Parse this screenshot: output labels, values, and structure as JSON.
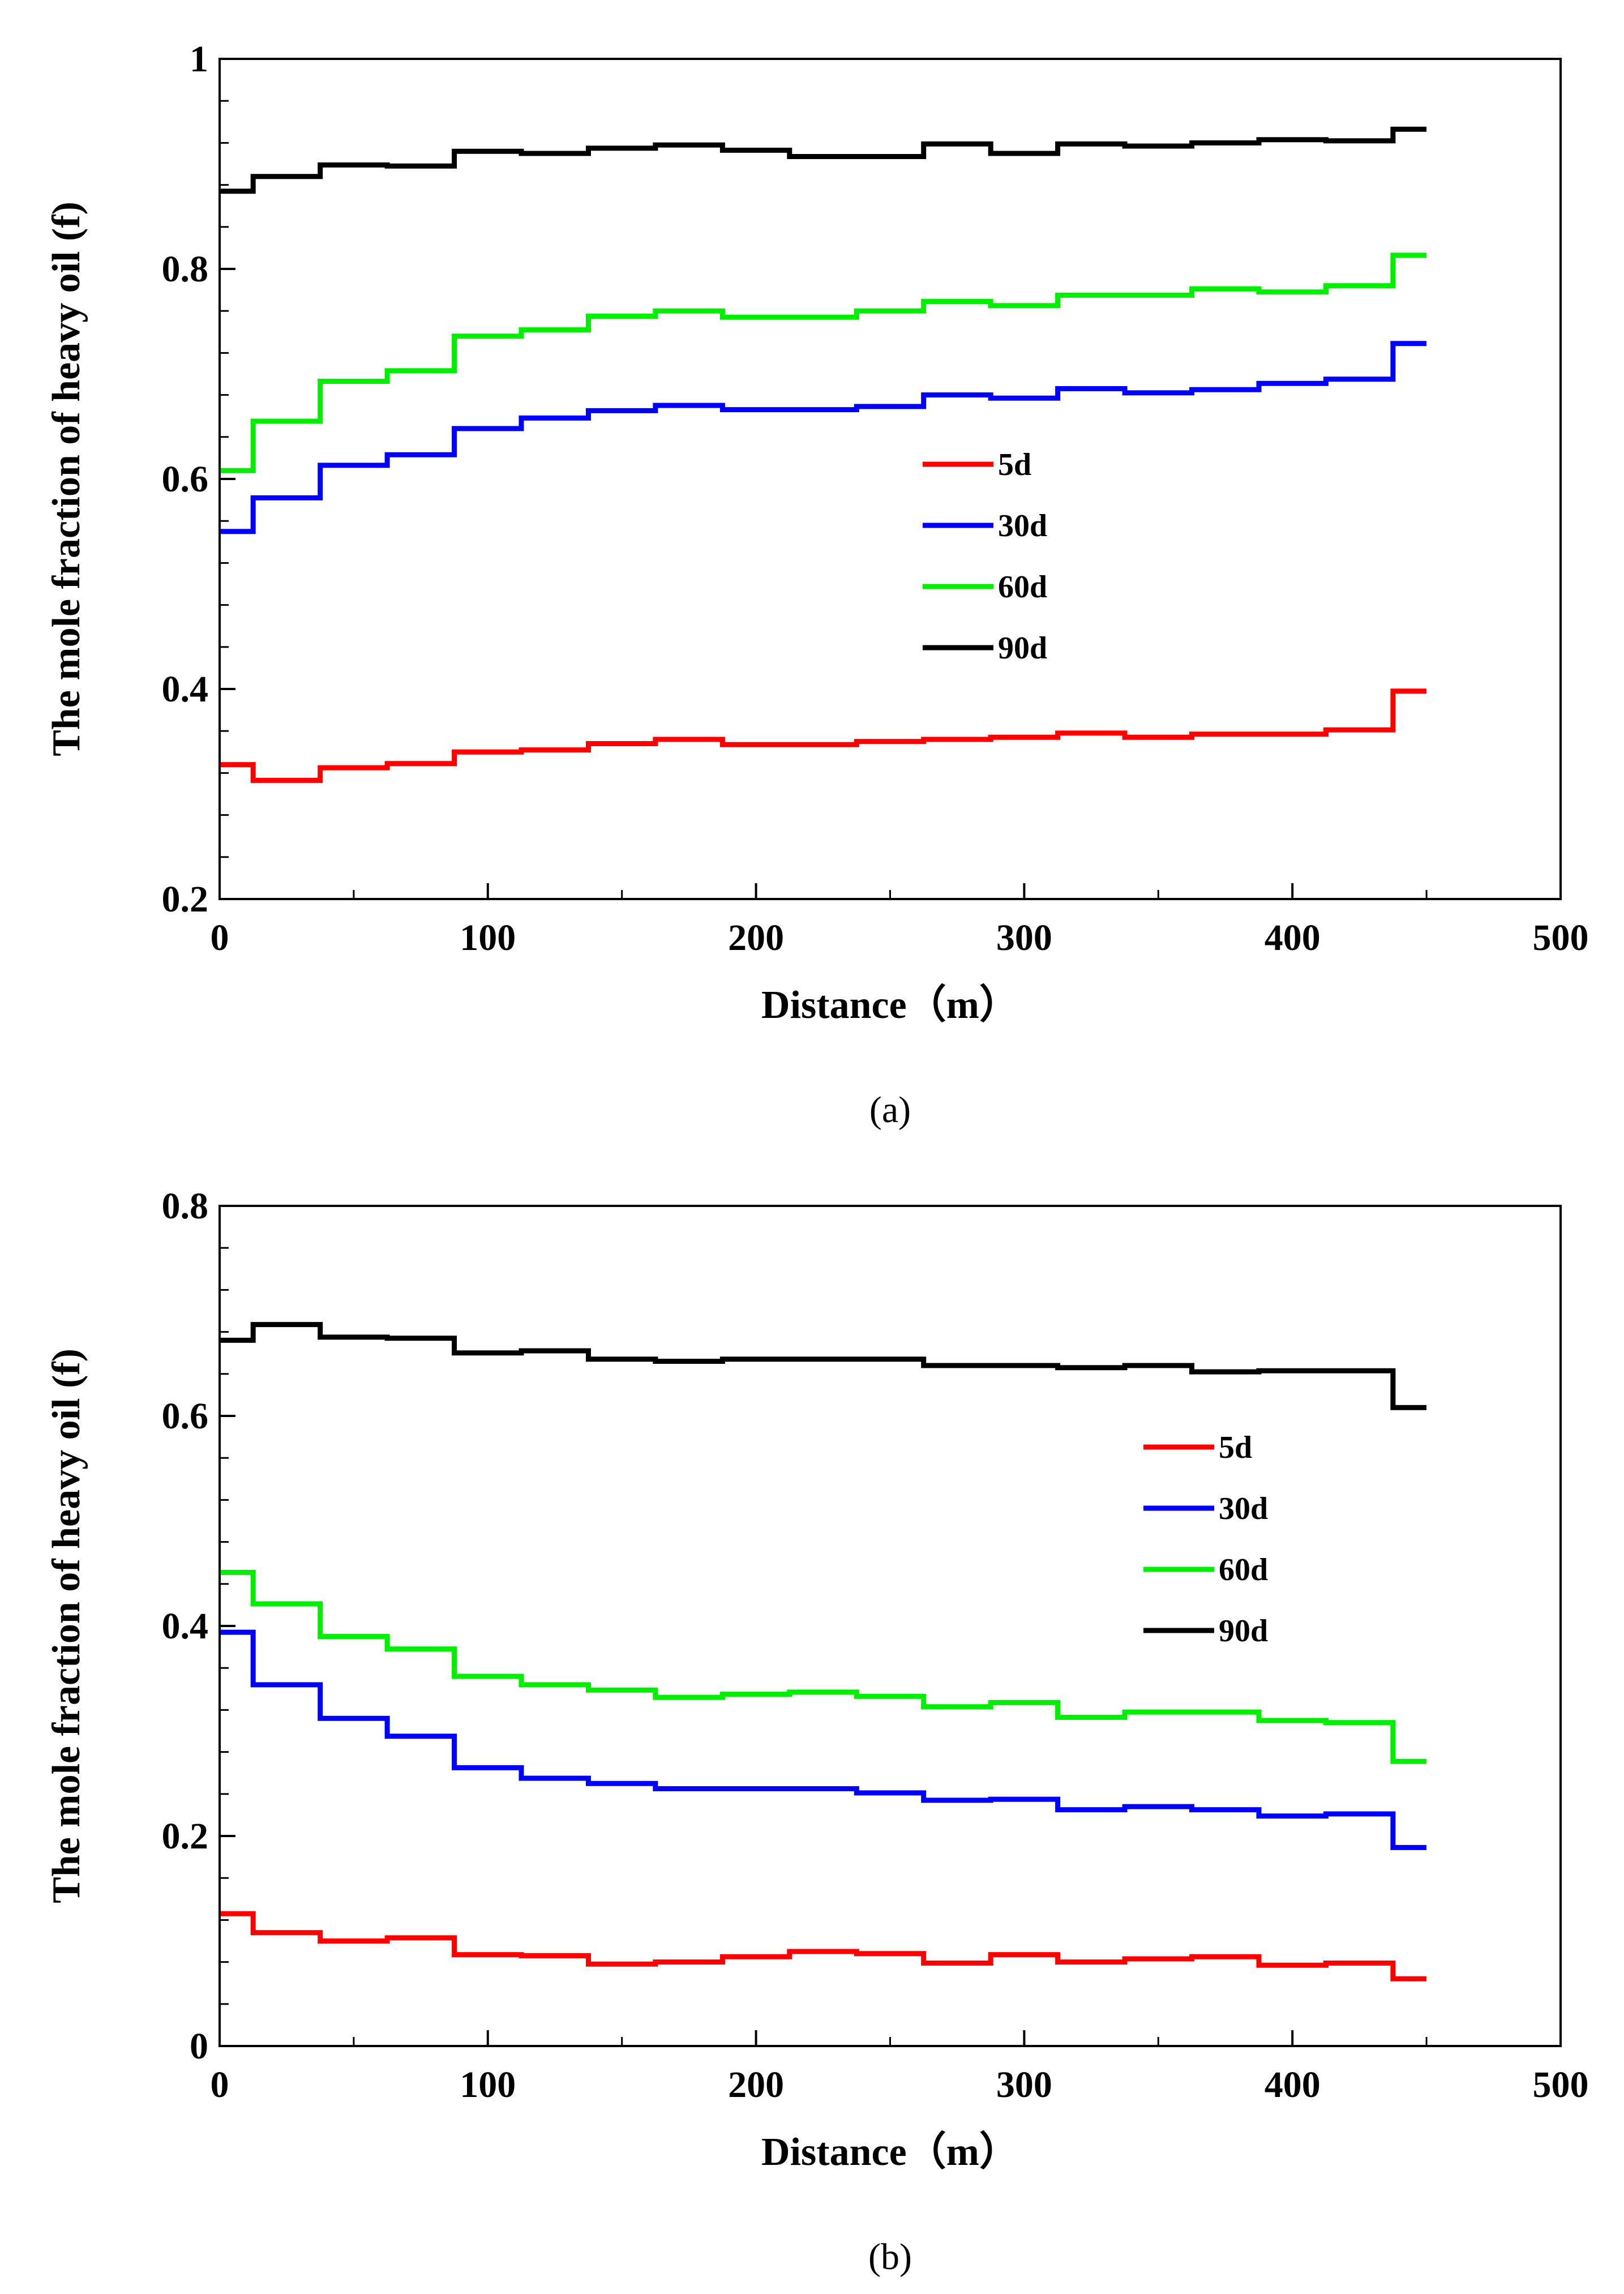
{
  "chart_data": [
    {
      "type": "line",
      "panel": "(a)",
      "xlabel": "Distance（m）",
      "ylabel": "The mole fraction of heavy oil (f)",
      "xlim": [
        0,
        500
      ],
      "ylim": [
        0.2,
        1.0
      ],
      "xticks": [
        0,
        100,
        200,
        300,
        400,
        500
      ],
      "xtick_labels": [
        "0",
        "100",
        "200",
        "300",
        "400",
        "500"
      ],
      "yticks": [
        0.2,
        0.4,
        0.6,
        0.8,
        1.0
      ],
      "ytick_labels": [
        "0.2",
        "0.4",
        "0.6",
        "0.8",
        "1"
      ],
      "legend_position": "center-right",
      "x": [
        0,
        12.5,
        37.5,
        62.5,
        87.5,
        112.5,
        137.5,
        162.5,
        187.5,
        212.5,
        237.5,
        262.5,
        287.5,
        312.5,
        337.5,
        362.5,
        387.5,
        412.5,
        437.5,
        450
      ],
      "series": [
        {
          "name": "5d",
          "color": "#ff0000",
          "values": [
            0.328,
            0.313,
            0.325,
            0.329,
            0.34,
            0.342,
            0.348,
            0.352,
            0.347,
            0.347,
            0.35,
            0.352,
            0.354,
            0.358,
            0.354,
            0.357,
            0.357,
            0.361,
            0.398,
            0.398
          ]
        },
        {
          "name": "30d",
          "color": "#0000ff",
          "values": [
            0.55,
            0.582,
            0.613,
            0.623,
            0.648,
            0.658,
            0.665,
            0.67,
            0.666,
            0.666,
            0.669,
            0.68,
            0.677,
            0.686,
            0.682,
            0.685,
            0.691,
            0.695,
            0.729,
            0.729
          ]
        },
        {
          "name": "60d",
          "color": "#00ee00",
          "values": [
            0.608,
            0.655,
            0.693,
            0.703,
            0.736,
            0.742,
            0.755,
            0.76,
            0.754,
            0.754,
            0.76,
            0.769,
            0.765,
            0.775,
            0.775,
            0.781,
            0.778,
            0.784,
            0.813,
            0.813
          ]
        },
        {
          "name": "90d",
          "color": "#000000",
          "values": [
            0.874,
            0.888,
            0.899,
            0.898,
            0.912,
            0.91,
            0.915,
            0.918,
            0.913,
            0.907,
            0.907,
            0.919,
            0.91,
            0.919,
            0.917,
            0.92,
            0.923,
            0.922,
            0.933,
            0.933
          ]
        }
      ]
    },
    {
      "type": "line",
      "panel": "(b)",
      "xlabel": "Distance（m）",
      "ylabel": "The mole fraction of heavy oil (f)",
      "xlim": [
        0,
        500
      ],
      "ylim": [
        0,
        0.8
      ],
      "xticks": [
        0,
        100,
        200,
        300,
        400,
        500
      ],
      "xtick_labels": [
        "0",
        "100",
        "200",
        "300",
        "400",
        "500"
      ],
      "yticks": [
        0,
        0.2,
        0.4,
        0.6,
        0.8
      ],
      "ytick_labels": [
        "0",
        "0.2",
        "0.4",
        "0.6",
        "0.8"
      ],
      "legend_position": "center-right",
      "x": [
        0,
        12.5,
        37.5,
        62.5,
        87.5,
        112.5,
        137.5,
        162.5,
        187.5,
        212.5,
        237.5,
        262.5,
        287.5,
        312.5,
        337.5,
        362.5,
        387.5,
        412.5,
        437.5,
        450
      ],
      "series": [
        {
          "name": "5d",
          "color": "#ff0000",
          "values": [
            0.126,
            0.108,
            0.1,
            0.103,
            0.087,
            0.086,
            0.078,
            0.08,
            0.085,
            0.09,
            0.088,
            0.079,
            0.087,
            0.08,
            0.083,
            0.085,
            0.077,
            0.079,
            0.064,
            0.064
          ]
        },
        {
          "name": "30d",
          "color": "#0000ff",
          "values": [
            0.394,
            0.344,
            0.312,
            0.295,
            0.265,
            0.255,
            0.25,
            0.245,
            0.245,
            0.245,
            0.241,
            0.234,
            0.235,
            0.225,
            0.228,
            0.225,
            0.219,
            0.221,
            0.189,
            0.189
          ]
        },
        {
          "name": "60d",
          "color": "#00ee00",
          "values": [
            0.451,
            0.421,
            0.39,
            0.378,
            0.352,
            0.344,
            0.339,
            0.332,
            0.335,
            0.337,
            0.333,
            0.323,
            0.327,
            0.313,
            0.318,
            0.318,
            0.31,
            0.308,
            0.271,
            0.271
          ]
        },
        {
          "name": "90d",
          "color": "#000000",
          "values": [
            0.672,
            0.687,
            0.675,
            0.674,
            0.66,
            0.662,
            0.654,
            0.652,
            0.654,
            0.654,
            0.654,
            0.648,
            0.648,
            0.646,
            0.648,
            0.642,
            0.643,
            0.643,
            0.608,
            0.608
          ]
        }
      ]
    }
  ]
}
